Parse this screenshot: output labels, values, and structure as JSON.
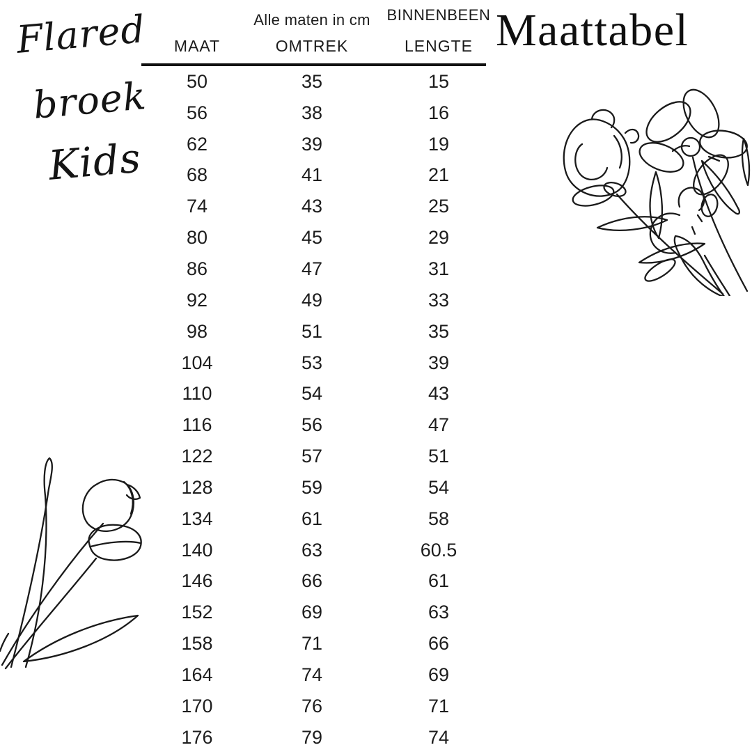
{
  "page": {
    "background": "#ffffff",
    "ink": "#1c1c1c"
  },
  "branding": {
    "script_lines": [
      "Flared",
      "broek",
      "Kids"
    ],
    "title": "Maattabel"
  },
  "chart_data": {
    "type": "table",
    "title": "Maattabel",
    "subtitle": "Flared broek Kids",
    "unit_note": "Alle maten in cm",
    "column_header_top": "BINNENBEEN",
    "column_headers": [
      "MAAT",
      "OMTREK",
      "LENGTE"
    ],
    "full_column_names": [
      "MAAT",
      "OMTREK",
      "BINNENBEEN LENGTE"
    ],
    "rows": [
      [
        "50",
        "35",
        "15"
      ],
      [
        "56",
        "38",
        "16"
      ],
      [
        "62",
        "39",
        "19"
      ],
      [
        "68",
        "41",
        "21"
      ],
      [
        "74",
        "43",
        "25"
      ],
      [
        "80",
        "45",
        "29"
      ],
      [
        "86",
        "47",
        "31"
      ],
      [
        "92",
        "49",
        "33"
      ],
      [
        "98",
        "51",
        "35"
      ],
      [
        "104",
        "53",
        "39"
      ],
      [
        "110",
        "54",
        "43"
      ],
      [
        "116",
        "56",
        "47"
      ],
      [
        "122",
        "57",
        "51"
      ],
      [
        "128",
        "59",
        "54"
      ],
      [
        "134",
        "61",
        "58"
      ],
      [
        "140",
        "63",
        "60.5"
      ],
      [
        "146",
        "66",
        "61"
      ],
      [
        "152",
        "69",
        "63"
      ],
      [
        "158",
        "71",
        "66"
      ],
      [
        "164",
        "74",
        "69"
      ],
      [
        "170",
        "76",
        "71"
      ],
      [
        "176",
        "79",
        "74"
      ]
    ]
  },
  "decor": {
    "top_right_illustration": "wildflowers-line-art",
    "bottom_left_illustration": "tulips-line-art"
  }
}
